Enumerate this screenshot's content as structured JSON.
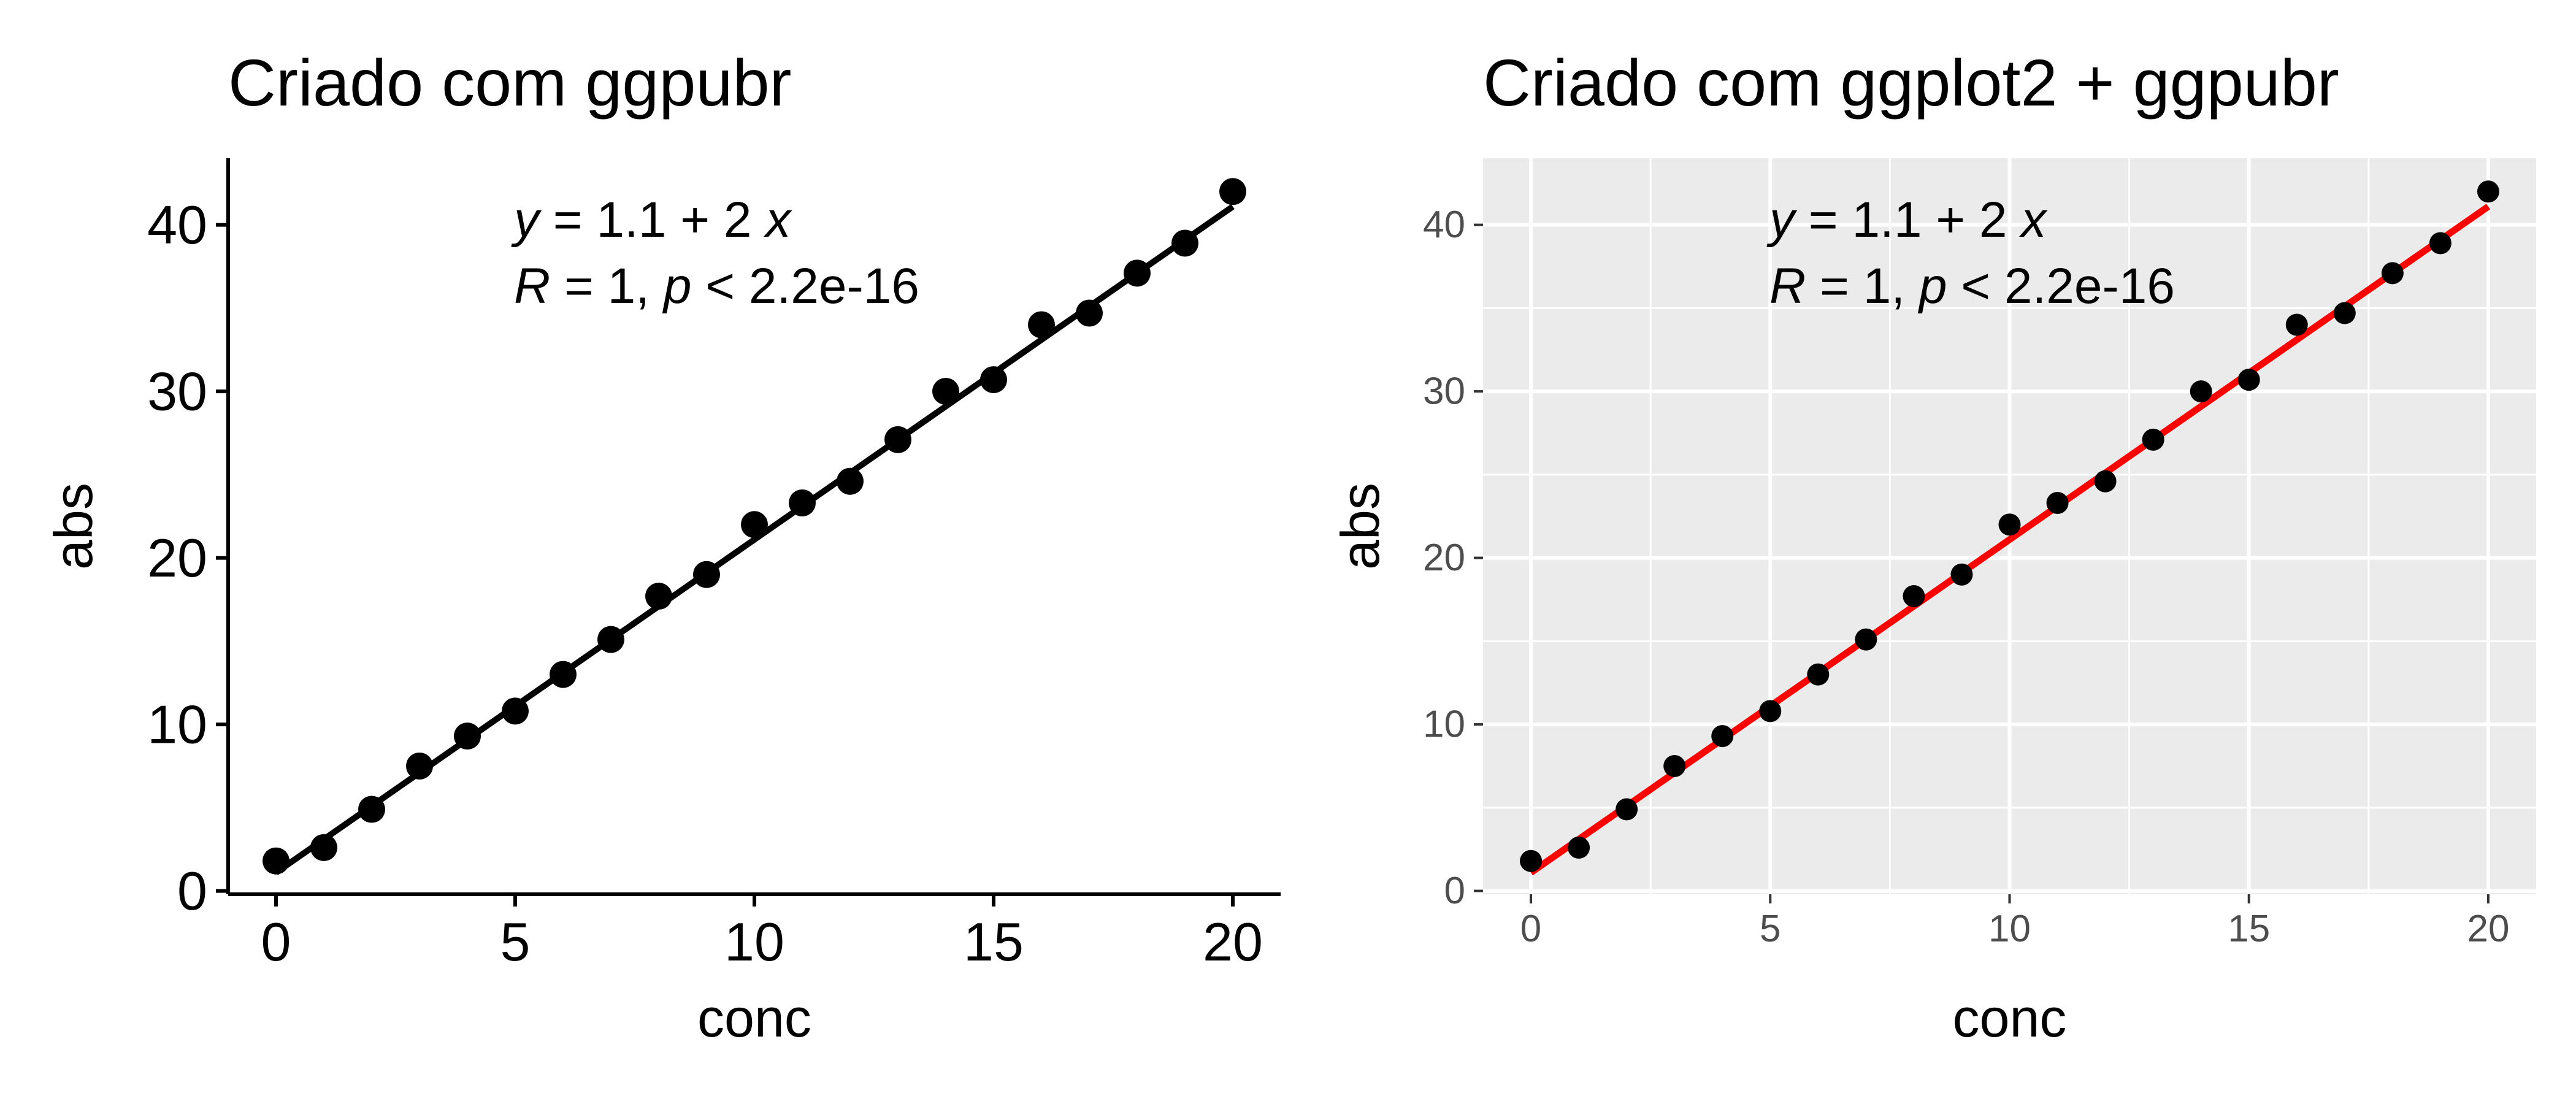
{
  "chart_data": [
    {
      "type": "scatter",
      "title": "Criado com ggpubr",
      "xlabel": "conc",
      "ylabel": "abs",
      "xlim": [
        -1,
        21
      ],
      "ylim": [
        -0.2,
        44
      ],
      "x_ticks": [
        0,
        5,
        10,
        15,
        20
      ],
      "y_ticks": [
        0,
        10,
        20,
        30,
        40
      ],
      "x_tick_labels": [
        "0",
        "5",
        "10",
        "15",
        "20"
      ],
      "y_tick_labels": [
        "0",
        "10",
        "20",
        "30",
        "40"
      ],
      "grid": false,
      "background": "#ffffff",
      "point_color": "#000000",
      "line_color": "#000000",
      "series": [
        {
          "x": [
            0,
            1,
            2,
            3,
            4,
            5,
            6,
            7,
            8,
            9,
            10,
            11,
            12,
            13,
            14,
            15,
            16,
            17,
            18,
            19,
            20
          ],
          "values": [
            1.8,
            2.6,
            4.9,
            7.5,
            9.3,
            10.8,
            13.0,
            15.1,
            17.7,
            19.0,
            22.0,
            23.3,
            24.6,
            27.1,
            30.0,
            30.7,
            34.0,
            34.7,
            37.1,
            38.9,
            42.0
          ]
        }
      ],
      "fit_line": {
        "intercept": 1.1,
        "slope": 2,
        "x_range": [
          0,
          20
        ]
      },
      "annotation": {
        "line1": {
          "y": "y",
          "eq_a": " = 1.1 + 2 ",
          "x": "x"
        },
        "line2": {
          "R": "R",
          "mid": " = 1, ",
          "p": "p",
          "rest": " < 2.2e-16"
        }
      }
    },
    {
      "type": "scatter",
      "title": "Criado com ggplot2 + ggpubr",
      "xlabel": "conc",
      "ylabel": "abs",
      "xlim": [
        -1,
        21
      ],
      "ylim": [
        -0.2,
        44
      ],
      "x_ticks": [
        0,
        5,
        10,
        15,
        20
      ],
      "y_ticks": [
        0,
        10,
        20,
        30,
        40
      ],
      "x_tick_labels": [
        "0",
        "5",
        "10",
        "15",
        "20"
      ],
      "y_tick_labels": [
        "0",
        "10",
        "20",
        "30",
        "40"
      ],
      "grid": true,
      "background": "#ebebeb",
      "point_color": "#000000",
      "line_color": "#ff0000",
      "series": [
        {
          "x": [
            0,
            1,
            2,
            3,
            4,
            5,
            6,
            7,
            8,
            9,
            10,
            11,
            12,
            13,
            14,
            15,
            16,
            17,
            18,
            19,
            20
          ],
          "values": [
            1.8,
            2.6,
            4.9,
            7.5,
            9.3,
            10.8,
            13.0,
            15.1,
            17.7,
            19.0,
            22.0,
            23.3,
            24.6,
            27.1,
            30.0,
            30.7,
            34.0,
            34.7,
            37.1,
            38.9,
            42.0
          ]
        }
      ],
      "fit_line": {
        "intercept": 1.1,
        "slope": 2,
        "x_range": [
          0,
          20
        ]
      },
      "annotation": {
        "line1": {
          "y": "y",
          "eq_a": " = 1.1 + 2 ",
          "x": "x"
        },
        "line2": {
          "R": "R",
          "mid": " = 1, ",
          "p": "p",
          "rest": " < 2.2e-16"
        }
      }
    }
  ]
}
